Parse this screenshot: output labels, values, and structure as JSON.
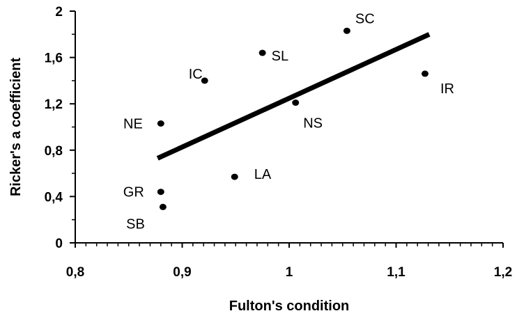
{
  "chart_data": {
    "type": "scatter",
    "title": "",
    "xlabel": "Fulton's condition",
    "ylabel": "Ricker's a coefficient",
    "xlim": [
      0.8,
      1.2
    ],
    "ylim": [
      0,
      2
    ],
    "x_ticks": [
      0.8,
      0.9,
      1.0,
      1.1,
      1.2
    ],
    "x_tick_labels": [
      "0,8",
      "0,9",
      "1",
      "1,1",
      "1,2"
    ],
    "y_ticks": [
      0,
      0.4,
      0.8,
      1.2,
      1.6,
      2.0
    ],
    "y_tick_labels": [
      "0",
      "0,4",
      "0,8",
      "1,2",
      "1,6",
      "2"
    ],
    "grid": false,
    "legend": "none",
    "points": [
      {
        "label": "SC",
        "x": 1.054,
        "y": 1.83
      },
      {
        "label": "SL",
        "x": 0.975,
        "y": 1.64
      },
      {
        "label": "IC",
        "x": 0.921,
        "y": 1.4
      },
      {
        "label": "IR",
        "x": 1.127,
        "y": 1.46
      },
      {
        "label": "NS",
        "x": 1.006,
        "y": 1.21
      },
      {
        "label": "NE",
        "x": 0.88,
        "y": 1.03
      },
      {
        "label": "LA",
        "x": 0.949,
        "y": 0.57
      },
      {
        "label": "GR",
        "x": 0.88,
        "y": 0.44
      },
      {
        "label": "SB",
        "x": 0.882,
        "y": 0.31
      }
    ],
    "trendline": {
      "x": [
        0.877,
        1.131
      ],
      "y": [
        0.73,
        1.8
      ]
    },
    "colors": {
      "points": "#000000",
      "trendline": "#000000",
      "axes": "#000000"
    }
  }
}
